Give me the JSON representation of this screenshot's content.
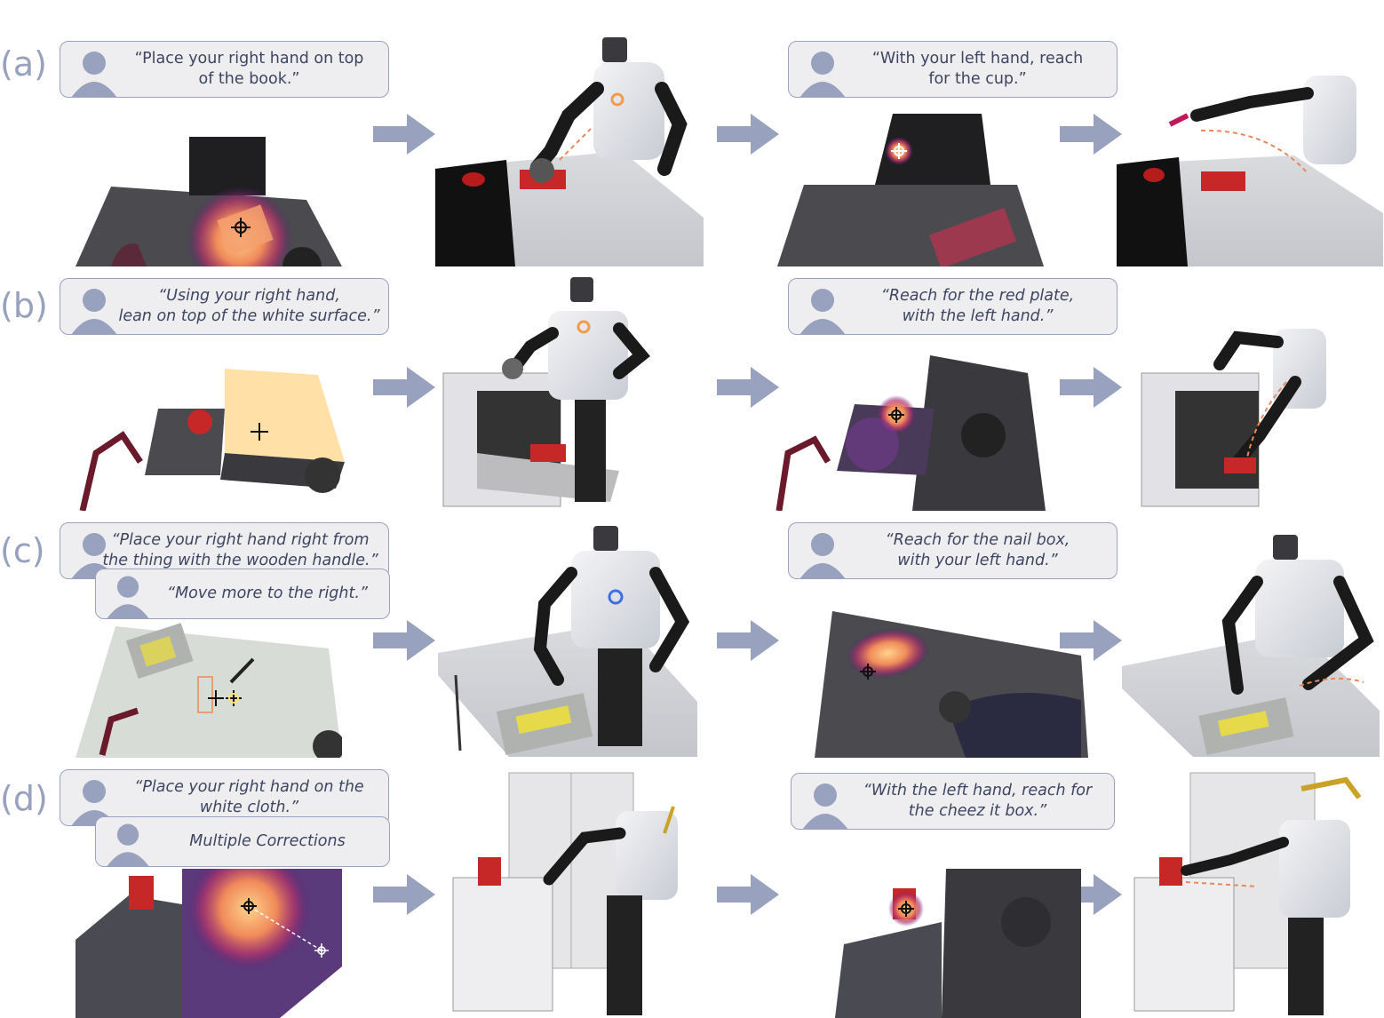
{
  "colors": {
    "bubble_fill": "#eeeef0",
    "bubble_border": "#9aa2bf",
    "avatar": "#98a1bd",
    "arrow": "#98a1bd",
    "row_label": "#98a1bd",
    "heatmap_hot": "#ffbf70",
    "trajectory": "#e8895a"
  },
  "rows": [
    {
      "label": "(a)",
      "prompt_right": "“Place your right hand on top\nof the book.”",
      "prompt_left": "“With your left hand, reach\nfor the cup.”"
    },
    {
      "label": "(b)",
      "prompt_right": "“Using your right hand,\nlean on top of the white surface.”",
      "prompt_left": "“Reach for the red plate,\nwith the left hand.”"
    },
    {
      "label": "(c)",
      "prompt_right": "“Place your right hand right from\nthe thing with the wooden handle.”",
      "correction": "“Move more to the right.”",
      "prompt_left": "“Reach for the nail box,\nwith your left hand.”"
    },
    {
      "label": "(d)",
      "prompt_right": "“Place your right hand on the\nwhite cloth.”",
      "correction": "Multiple Corrections",
      "prompt_left": "“With the left hand, reach for\nthe cheez it box.”"
    }
  ],
  "icons": {
    "avatar": "person-avatar-icon",
    "arrow": "right-arrow-icon",
    "target": "crosshair-target-icon"
  }
}
